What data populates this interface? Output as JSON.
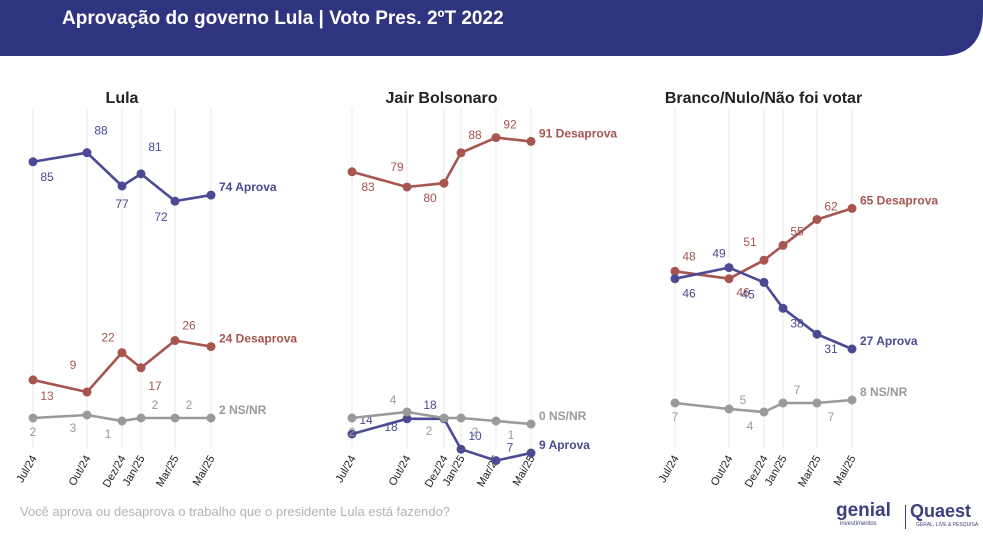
{
  "header": {
    "title": "Aprovação do governo Lula | Voto Pres. 2ºT 2022",
    "color": "#2e3480"
  },
  "footer": {
    "question": "Você aprova ou desaprova o trabalho que o presidente Lula está fazendo?"
  },
  "logos": {
    "genial": "genial",
    "genial_sub": "investimentos",
    "quaest": "Quaest",
    "quaest_sub": "GERAL, LIVE & PESQUISA"
  },
  "colors": {
    "aprova": "#4b4a92",
    "desaprova": "#a6554f",
    "nsnr": "#9a9a9a",
    "grid": "#e8e8e8"
  },
  "chart_data": [
    {
      "type": "line",
      "title": "Lula",
      "categories": [
        "Jul/24",
        "Out/24",
        "Dez/24",
        "Jan/25",
        "Mar/25",
        "Mai/25"
      ],
      "series": [
        {
          "name": "Aprova",
          "values": [
            85,
            88,
            77,
            81,
            72,
            74
          ],
          "end_label": "74 Aprova"
        },
        {
          "name": "Desaprova",
          "values": [
            13,
            9,
            22,
            17,
            26,
            24
          ],
          "end_label": "24 Desaprova"
        },
        {
          "name": "NS/NR",
          "values": [
            2,
            3,
            1,
            2,
            2,
            2
          ],
          "end_label": "2 NS/NR"
        }
      ]
    },
    {
      "type": "line",
      "title": "Jair Bolsonaro",
      "categories": [
        "Jul/24",
        "Out/24",
        "Dez/24",
        "Jan/25",
        "Mar/25",
        "Mai/25"
      ],
      "series": [
        {
          "name": "Desaprova",
          "values": [
            83,
            79,
            80,
            88,
            92,
            91
          ],
          "end_label": "91 Desaprova"
        },
        {
          "name": "Aprova",
          "values": [
            14,
            18,
            18,
            10,
            7,
            9
          ],
          "end_label": "9 Aprova"
        },
        {
          "name": "NS/NR",
          "values": [
            2,
            4,
            2,
            2,
            1,
            0
          ],
          "end_label": "0 NS/NR"
        }
      ]
    },
    {
      "type": "line",
      "title": "Branco/Nulo/Não foi votar",
      "categories": [
        "Jul/24",
        "Out/24",
        "Dez/24",
        "Jan/25",
        "Mar/25",
        "Mai/25"
      ],
      "series": [
        {
          "name": "Desaprova",
          "values": [
            48,
            46,
            51,
            55,
            62,
            65
          ],
          "end_label": "65 Desaprova"
        },
        {
          "name": "Aprova",
          "values": [
            46,
            49,
            45,
            38,
            31,
            27
          ],
          "end_label": "27 Aprova"
        },
        {
          "name": "NS/NR",
          "values": [
            7,
            5,
            4,
            7,
            7,
            8
          ],
          "end_label": "8 NS/NR"
        }
      ]
    }
  ]
}
